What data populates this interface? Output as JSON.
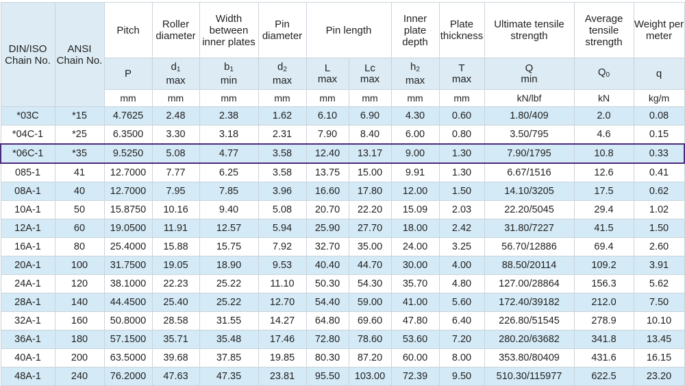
{
  "headers": {
    "din": "DIN/ISO Chain No.",
    "ansi": "ANSI Chain No.",
    "pitch": "Pitch",
    "roller": "Roller diameter",
    "width": "Width between inner plates",
    "pin_diam": "Pin diameter",
    "pin_len": "Pin length",
    "inner_depth": "Inner plate depth",
    "plate_thick": "Plate thickness",
    "ult": "Ultimate tensile strength",
    "avg": "Average tensile strength",
    "weight": "Weight per meter"
  },
  "symbols": {
    "pitch": {
      "sym": "P",
      "sub": "",
      "qual": ""
    },
    "roller": {
      "sym": "d",
      "sub": "1",
      "qual": "max"
    },
    "width": {
      "sym": "b",
      "sub": "1",
      "qual": "min"
    },
    "pin_diam": {
      "sym": "d",
      "sub": "2",
      "qual": "max"
    },
    "pin_L": {
      "sym": "L",
      "sub": "",
      "qual": "max"
    },
    "pin_Lc": {
      "sym": "Lc",
      "sub": "",
      "qual": "max"
    },
    "inner_depth": {
      "sym": "h",
      "sub": "2",
      "qual": "max"
    },
    "plate_thick": {
      "sym": "T",
      "sub": "",
      "qual": "max"
    },
    "ult": {
      "sym": "Q",
      "sub": "",
      "qual": "min"
    },
    "avg": {
      "sym": "Q",
      "sub": "0",
      "qual": ""
    },
    "weight": {
      "sym": "q",
      "sub": "",
      "qual": ""
    }
  },
  "units": [
    "mm",
    "mm",
    "mm",
    "mm",
    "mm",
    "mm",
    "mm",
    "mm",
    "kN/lbf",
    "kN",
    "kg/m"
  ],
  "rows": [
    [
      "*03C",
      "*15",
      "4.7625",
      "2.48",
      "2.38",
      "1.62",
      "6.10",
      "6.90",
      "4.30",
      "0.60",
      "1.80/409",
      "2.0",
      "0.08"
    ],
    [
      "*04C-1",
      "*25",
      "6.3500",
      "3.30",
      "3.18",
      "2.31",
      "7.90",
      "8.40",
      "6.00",
      "0.80",
      "3.50/795",
      "4.6",
      "0.15"
    ],
    [
      "*06C-1",
      "*35",
      "9.5250",
      "5.08",
      "4.77",
      "3.58",
      "12.40",
      "13.17",
      "9.00",
      "1.30",
      "7.90/1795",
      "10.8",
      "0.33"
    ],
    [
      "085-1",
      "41",
      "12.7000",
      "7.77",
      "6.25",
      "3.58",
      "13.75",
      "15.00",
      "9.91",
      "1.30",
      "6.67/1516",
      "12.6",
      "0.41"
    ],
    [
      "08A-1",
      "40",
      "12.7000",
      "7.95",
      "7.85",
      "3.96",
      "16.60",
      "17.80",
      "12.00",
      "1.50",
      "14.10/3205",
      "17.5",
      "0.62"
    ],
    [
      "10A-1",
      "50",
      "15.8750",
      "10.16",
      "9.40",
      "5.08",
      "20.70",
      "22.20",
      "15.09",
      "2.03",
      "22.20/5045",
      "29.4",
      "1.02"
    ],
    [
      "12A-1",
      "60",
      "19.0500",
      "11.91",
      "12.57",
      "5.94",
      "25.90",
      "27.70",
      "18.00",
      "2.42",
      "31.80/7227",
      "41.5",
      "1.50"
    ],
    [
      "16A-1",
      "80",
      "25.4000",
      "15.88",
      "15.75",
      "7.92",
      "32.70",
      "35.00",
      "24.00",
      "3.25",
      "56.70/12886",
      "69.4",
      "2.60"
    ],
    [
      "20A-1",
      "100",
      "31.7500",
      "19.05",
      "18.90",
      "9.53",
      "40.40",
      "44.70",
      "30.00",
      "4.00",
      "88.50/20114",
      "109.2",
      "3.91"
    ],
    [
      "24A-1",
      "120",
      "38.1000",
      "22.23",
      "25.22",
      "11.10",
      "50.30",
      "54.30",
      "35.70",
      "4.80",
      "127.00/28864",
      "156.3",
      "5.62"
    ],
    [
      "28A-1",
      "140",
      "44.4500",
      "25.40",
      "25.22",
      "12.70",
      "54.40",
      "59.00",
      "41.00",
      "5.60",
      "172.40/39182",
      "212.0",
      "7.50"
    ],
    [
      "32A-1",
      "160",
      "50.8000",
      "28.58",
      "31.55",
      "14.27",
      "64.80",
      "69.60",
      "47.80",
      "6.40",
      "226.80/51545",
      "278.9",
      "10.10"
    ],
    [
      "36A-1",
      "180",
      "57.1500",
      "35.71",
      "35.48",
      "17.46",
      "72.80",
      "78.60",
      "53.60",
      "7.20",
      "280.20/63682",
      "341.8",
      "13.45"
    ],
    [
      "40A-1",
      "200",
      "63.5000",
      "39.68",
      "37.85",
      "19.85",
      "80.30",
      "87.20",
      "60.00",
      "8.00",
      "353.80/80409",
      "431.6",
      "16.15"
    ],
    [
      "48A-1",
      "240",
      "76.2000",
      "47.63",
      "47.35",
      "23.81",
      "95.50",
      "103.00",
      "72.39",
      "9.50",
      "510.30/115977",
      "622.5",
      "23.20"
    ]
  ],
  "highlight_row": 2,
  "colors": {
    "highlight_border": "#4a2a7a",
    "row_shade": "#d4eaf6",
    "header_shade": "#dcebf4"
  }
}
